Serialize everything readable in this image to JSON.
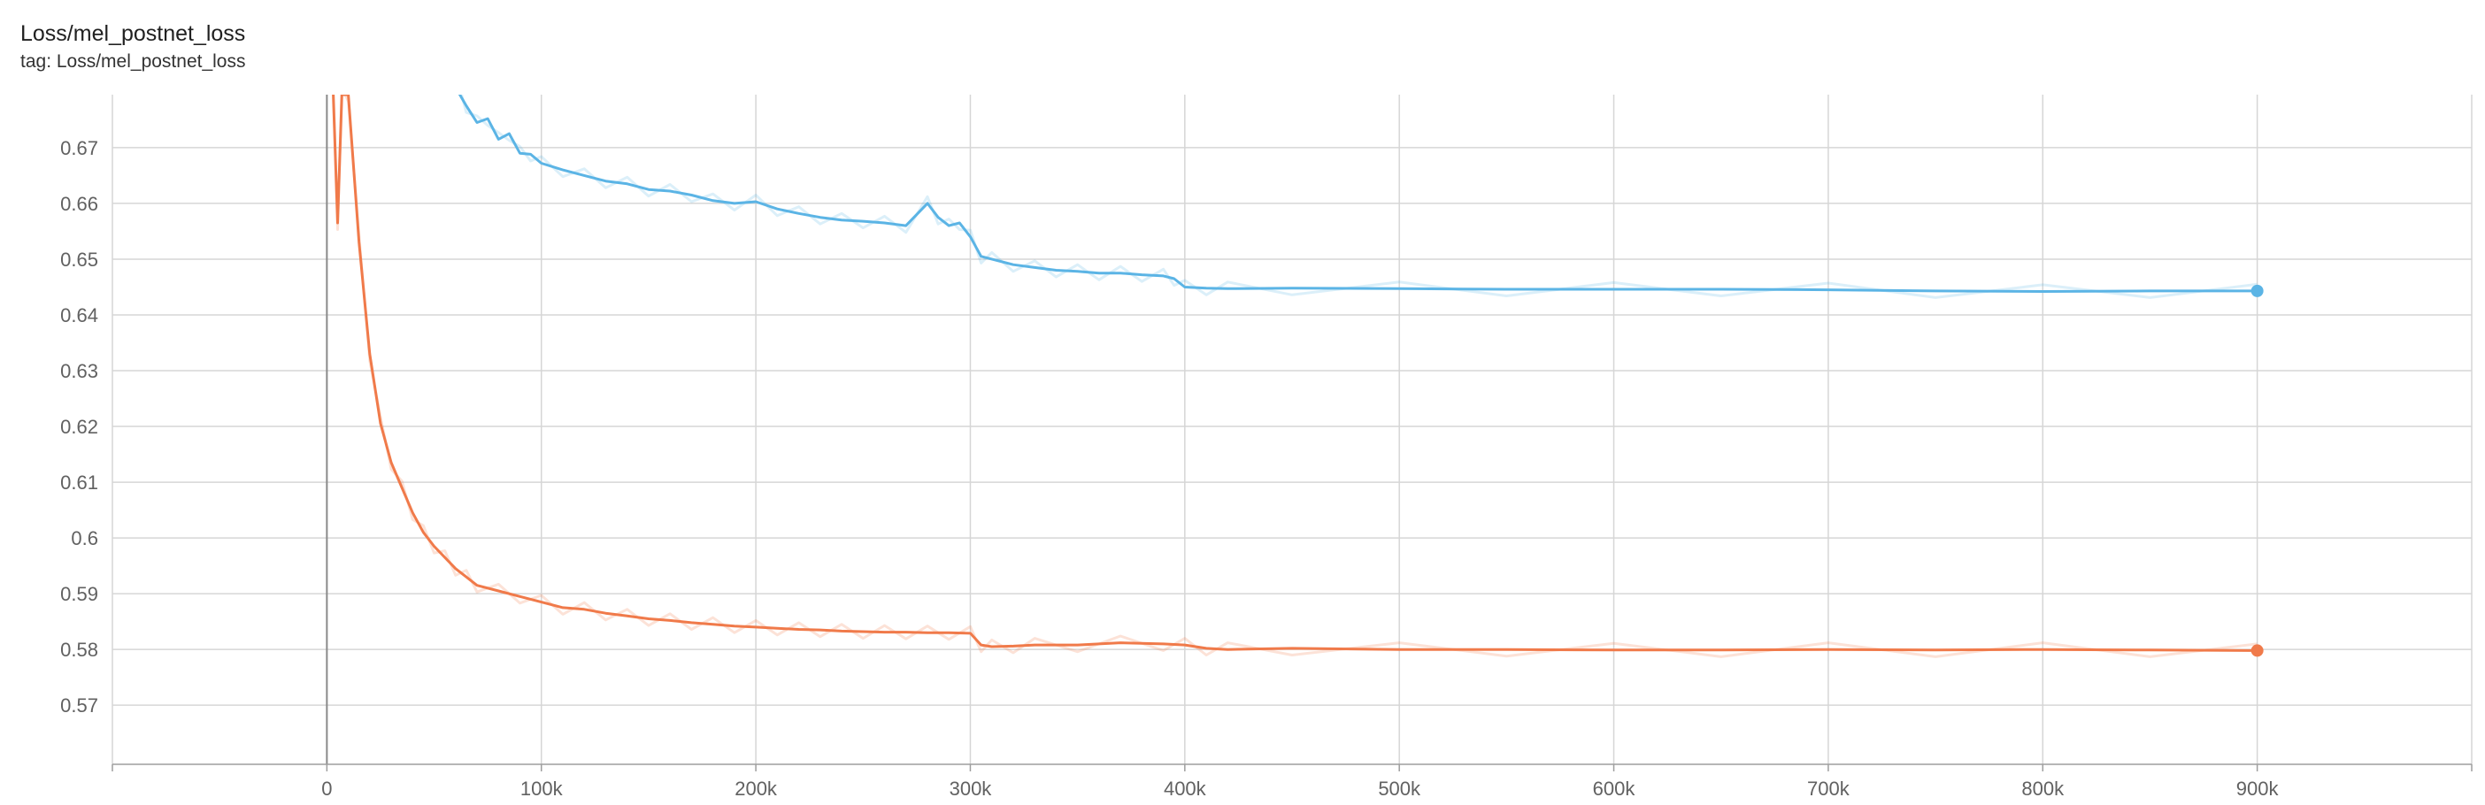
{
  "card": {
    "title": "Loss/mel_postnet_loss",
    "subtitle": "tag: Loss/mel_postnet_loss"
  },
  "colors": {
    "series_blue": "#5bb4e5",
    "series_orange": "#f07a4a",
    "grid": "#d6d6d6",
    "axis": "#9e9e9e",
    "zero_line": "#8a8a8a"
  },
  "chart_data": {
    "type": "line",
    "title": "Loss/mel_postnet_loss",
    "xlabel": "",
    "ylabel": "",
    "xlim": [
      -100000,
      1000000
    ],
    "ylim": [
      0.5594,
      0.6795
    ],
    "grid": true,
    "legend": "none",
    "x_ticks": [
      0,
      100000,
      200000,
      300000,
      400000,
      500000,
      600000,
      700000,
      800000,
      900000
    ],
    "x_tick_labels": [
      "0",
      "100k",
      "200k",
      "300k",
      "400k",
      "500k",
      "600k",
      "700k",
      "800k",
      "900k"
    ],
    "y_ticks": [
      0.57,
      0.58,
      0.59,
      0.6,
      0.61,
      0.62,
      0.63,
      0.64,
      0.65,
      0.66,
      0.67
    ],
    "y_tick_labels": [
      "0.57",
      "0.58",
      "0.59",
      "0.6",
      "0.61",
      "0.62",
      "0.63",
      "0.64",
      "0.65",
      "0.66",
      "0.67"
    ],
    "series": [
      {
        "color": "#5bb4e5",
        "x": [
          62000,
          65000,
          70000,
          75000,
          80000,
          85000,
          90000,
          95000,
          100000,
          110000,
          120000,
          130000,
          140000,
          150000,
          160000,
          170000,
          180000,
          190000,
          200000,
          210000,
          220000,
          230000,
          240000,
          250000,
          260000,
          270000,
          280000,
          285000,
          290000,
          295000,
          300000,
          305000,
          310000,
          320000,
          330000,
          340000,
          350000,
          360000,
          370000,
          380000,
          390000,
          395000,
          400000,
          410000,
          420000,
          450000,
          500000,
          550000,
          600000,
          650000,
          700000,
          750000,
          800000,
          850000,
          900000
        ],
        "y": [
          0.6795,
          0.6775,
          0.6745,
          0.6752,
          0.6715,
          0.6725,
          0.669,
          0.6688,
          0.6672,
          0.666,
          0.665,
          0.664,
          0.6635,
          0.6625,
          0.6622,
          0.6615,
          0.6605,
          0.66,
          0.6603,
          0.659,
          0.6582,
          0.6575,
          0.657,
          0.6568,
          0.6565,
          0.656,
          0.66,
          0.6575,
          0.656,
          0.6565,
          0.654,
          0.6505,
          0.65,
          0.649,
          0.6485,
          0.648,
          0.6478,
          0.6475,
          0.6475,
          0.6472,
          0.647,
          0.6465,
          0.645,
          0.6448,
          0.6447,
          0.6448,
          0.6447,
          0.6446,
          0.6446,
          0.6446,
          0.6445,
          0.6443,
          0.6442,
          0.6443,
          0.6443
        ]
      },
      {
        "color": "#f07a4a",
        "x": [
          3000,
          5000,
          7000,
          10000,
          15000,
          20000,
          25000,
          30000,
          35000,
          40000,
          45000,
          50000,
          55000,
          60000,
          65000,
          70000,
          80000,
          90000,
          100000,
          110000,
          120000,
          130000,
          140000,
          150000,
          160000,
          170000,
          180000,
          190000,
          200000,
          210000,
          220000,
          230000,
          240000,
          250000,
          260000,
          270000,
          280000,
          290000,
          300000,
          305000,
          310000,
          320000,
          330000,
          350000,
          370000,
          390000,
          400000,
          410000,
          420000,
          450000,
          500000,
          550000,
          600000,
          650000,
          700000,
          750000,
          800000,
          850000,
          900000
        ],
        "y": [
          0.6795,
          0.6565,
          0.6795,
          0.6795,
          0.653,
          0.633,
          0.6205,
          0.6135,
          0.609,
          0.6045,
          0.601,
          0.5985,
          0.5965,
          0.5945,
          0.593,
          0.5915,
          0.5905,
          0.5895,
          0.5885,
          0.5875,
          0.5872,
          0.5865,
          0.586,
          0.5855,
          0.5852,
          0.5848,
          0.5845,
          0.5842,
          0.584,
          0.5838,
          0.5836,
          0.5835,
          0.5833,
          0.5832,
          0.5831,
          0.5831,
          0.583,
          0.583,
          0.5829,
          0.5808,
          0.5805,
          0.5806,
          0.5808,
          0.5808,
          0.5812,
          0.581,
          0.5808,
          0.5802,
          0.58,
          0.5802,
          0.58,
          0.58,
          0.5799,
          0.5799,
          0.58,
          0.5799,
          0.58,
          0.5799,
          0.5798
        ]
      }
    ]
  }
}
